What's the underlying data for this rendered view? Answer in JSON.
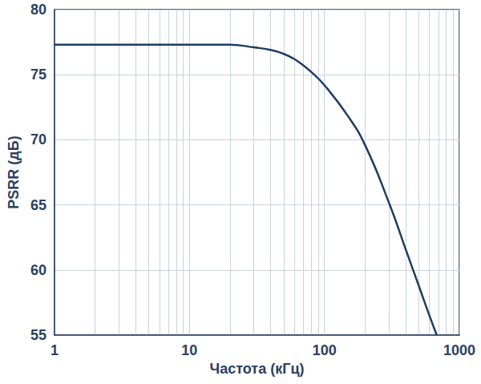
{
  "chart_data": {
    "type": "line",
    "xlabel": "Частота (кГц)",
    "ylabel": "PSRR (дБ)",
    "x": [
      1,
      2,
      5,
      10,
      20,
      30,
      40,
      50,
      60,
      70,
      80,
      100,
      150,
      200,
      300,
      400,
      500,
      600,
      680
    ],
    "values": [
      77.3,
      77.3,
      77.3,
      77.3,
      77.3,
      77.1,
      76.9,
      76.6,
      76.2,
      75.7,
      75.2,
      74.2,
      71.8,
      69.6,
      65.2,
      61.6,
      58.8,
      56.5,
      55.0
    ],
    "color": "#1f3d63",
    "xlim": [
      1,
      1000
    ],
    "xticks": [
      1,
      10,
      100,
      1000
    ],
    "ylim": [
      55,
      80
    ],
    "yticks": [
      55,
      60,
      65,
      70,
      75,
      80
    ],
    "log": "x",
    "grid": true
  }
}
